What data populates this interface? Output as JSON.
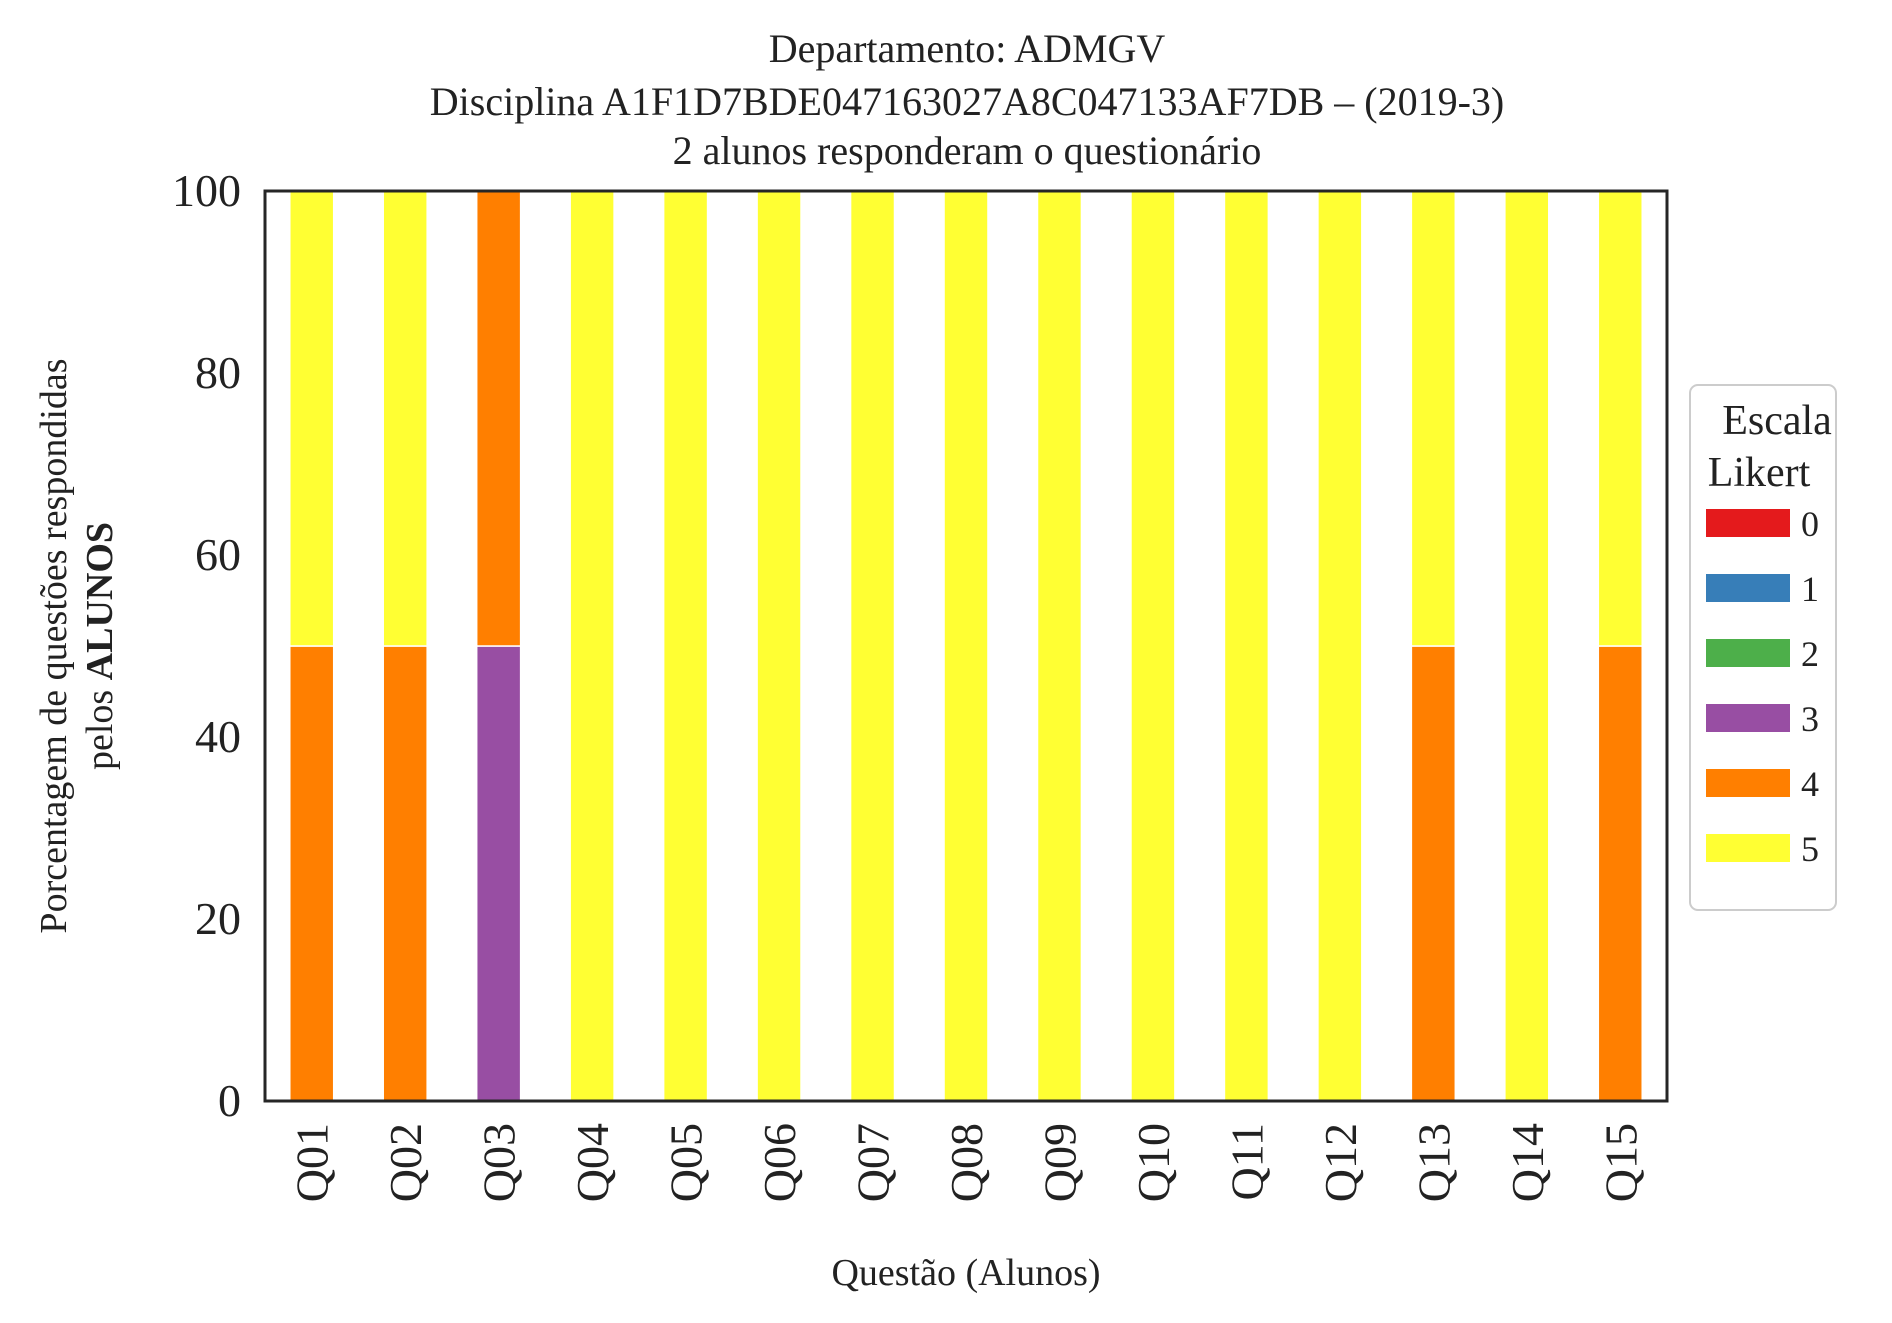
{
  "chart_data": {
    "type": "bar",
    "stacked": true,
    "title": "Departamento: ADMGV",
    "subtitle_lines": [
      "Disciplina A1F1D7BDE047163027A8C047133AF7DB – (2019-3)",
      "2 alunos responderam o questionário"
    ],
    "xlabel": "Questão (Alunos)",
    "ylabel_line1": "Porcentagem de questões respondidas",
    "ylabel_line2_prefix": "pelos ",
    "ylabel_line2_bold": "ALUNOS",
    "ylim": [
      0,
      100
    ],
    "yticks": [
      "0",
      "20",
      "40",
      "60",
      "80",
      "100"
    ],
    "grid": false,
    "categories": [
      "Q01",
      "Q02",
      "Q03",
      "Q04",
      "Q05",
      "Q06",
      "Q07",
      "Q08",
      "Q09",
      "Q10",
      "Q11",
      "Q12",
      "Q13",
      "Q14",
      "Q15"
    ],
    "series": [
      {
        "name": "0",
        "color": "#e41a1c",
        "values": [
          0,
          0,
          0,
          0,
          0,
          0,
          0,
          0,
          0,
          0,
          0,
          0,
          0,
          0,
          0
        ]
      },
      {
        "name": "1",
        "color": "#377eb8",
        "values": [
          0,
          0,
          0,
          0,
          0,
          0,
          0,
          0,
          0,
          0,
          0,
          0,
          0,
          0,
          0
        ]
      },
      {
        "name": "2",
        "color": "#4daf4a",
        "values": [
          0,
          0,
          0,
          0,
          0,
          0,
          0,
          0,
          0,
          0,
          0,
          0,
          0,
          0,
          0
        ]
      },
      {
        "name": "3",
        "color": "#984ea3",
        "values": [
          0,
          0,
          50,
          0,
          0,
          0,
          0,
          0,
          0,
          0,
          0,
          0,
          0,
          0,
          0
        ]
      },
      {
        "name": "4",
        "color": "#ff7f00",
        "values": [
          50,
          50,
          50,
          0,
          0,
          0,
          0,
          0,
          0,
          0,
          0,
          0,
          50,
          0,
          50
        ]
      },
      {
        "name": "5",
        "color": "#ffff33",
        "values": [
          50,
          50,
          0,
          100,
          100,
          100,
          100,
          100,
          100,
          100,
          100,
          100,
          50,
          100,
          50
        ]
      }
    ],
    "legend": {
      "title_lines": [
        "Escala",
        "Likert"
      ],
      "placement": "right-center"
    }
  }
}
